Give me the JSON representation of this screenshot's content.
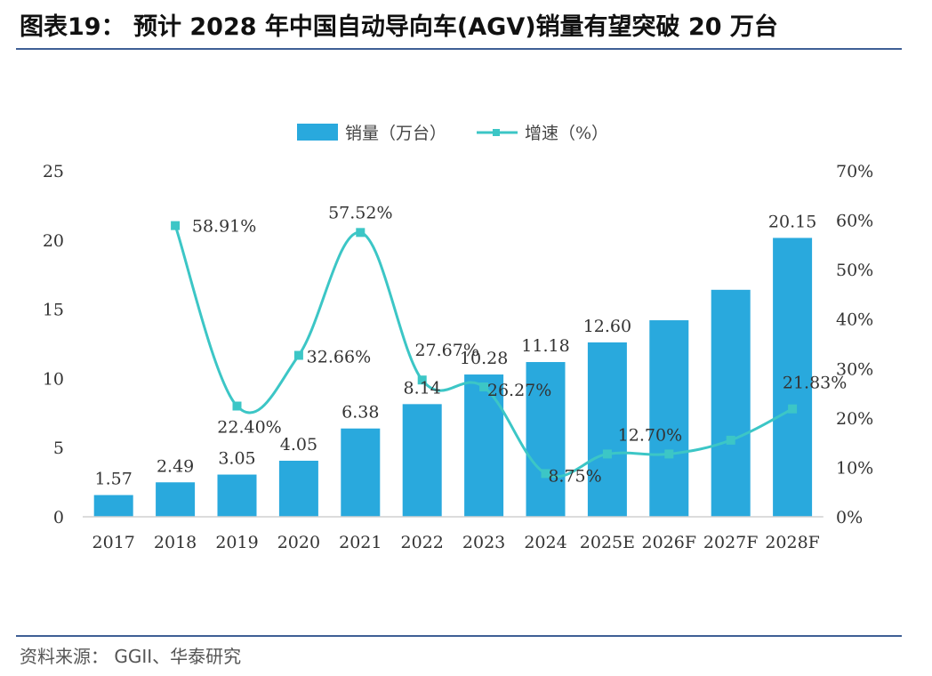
{
  "title": "图表19：  预计 2028 年中国自动导向车(AGV)销量有望突破 20 万台",
  "source": "资料来源：  GGII、华泰研究",
  "colors": {
    "bar": "#29a9dd",
    "line": "#3cc6c6",
    "rule": "#3f5f95"
  },
  "chart_data": {
    "type": "bar",
    "categories": [
      "2017",
      "2018",
      "2019",
      "2020",
      "2021",
      "2022",
      "2023",
      "2024",
      "2025E",
      "2026F",
      "2027F",
      "2028F"
    ],
    "series": [
      {
        "name": "销量（万台）",
        "type": "bar",
        "axis": "left",
        "values": [
          1.57,
          2.49,
          3.05,
          4.05,
          6.38,
          8.14,
          10.28,
          11.18,
          12.6,
          14.2,
          16.4,
          20.15
        ],
        "labels": [
          "1.57",
          "2.49",
          "3.05",
          "4.05",
          "6.38",
          "8.14",
          "10.28",
          "11.18",
          "12.60",
          "",
          "",
          "20.15"
        ]
      },
      {
        "name": "增速（%）",
        "type": "line",
        "axis": "right",
        "values": [
          null,
          58.91,
          22.4,
          32.66,
          57.52,
          27.67,
          26.27,
          8.75,
          12.7,
          12.7,
          15.5,
          21.83
        ],
        "labels": [
          "",
          "58.91%",
          "22.40%",
          "32.66%",
          "57.52%",
          "27.67%",
          "26.27%",
          "8.75%",
          "12.70%",
          "",
          "",
          "21.83%"
        ]
      }
    ],
    "yleft": {
      "min": 0,
      "max": 25,
      "ticks": [
        "0",
        "5",
        "10",
        "15",
        "20",
        "25"
      ]
    },
    "yright": {
      "min": 0,
      "max": 70,
      "ticks": [
        "0%",
        "10%",
        "20%",
        "30%",
        "40%",
        "50%",
        "60%",
        "70%"
      ]
    },
    "legend": "top",
    "grid": false
  }
}
